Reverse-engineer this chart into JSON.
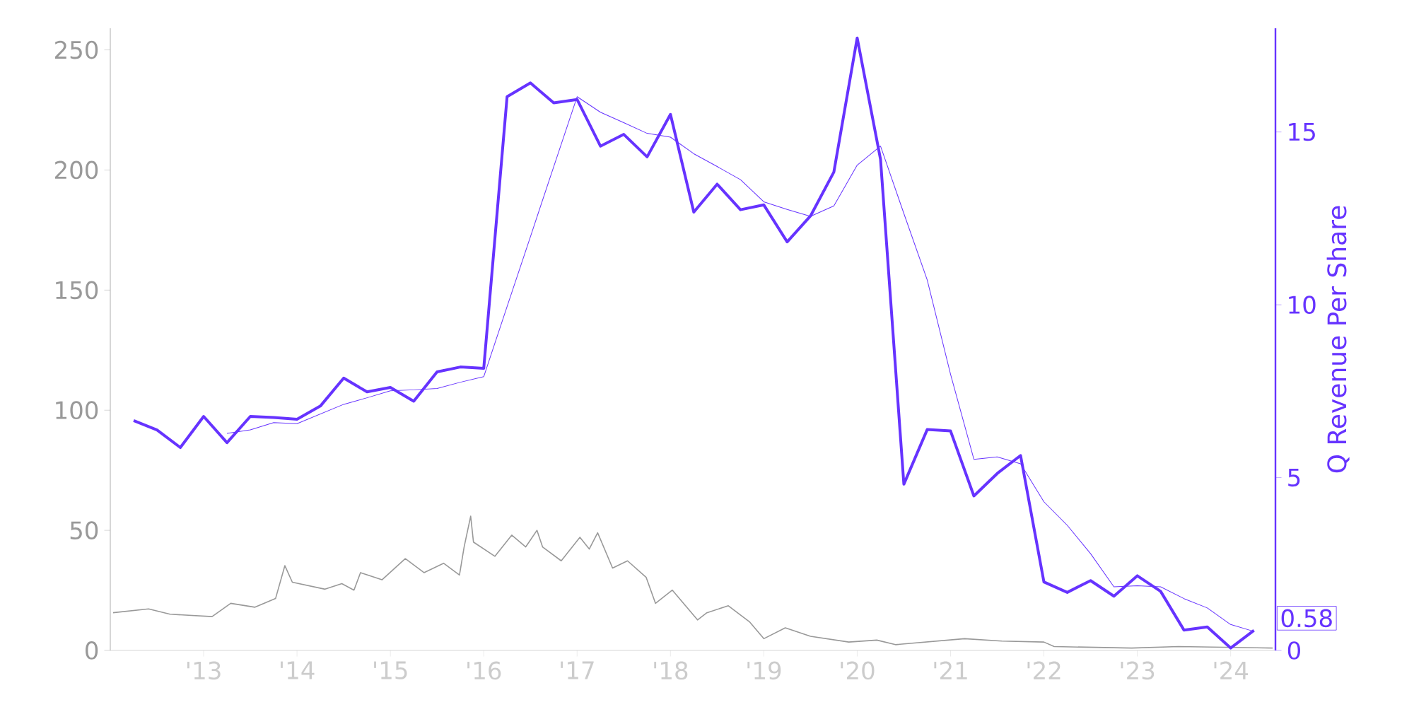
{
  "chart_data": {
    "type": "line",
    "y2label": "Q Revenue Per Share",
    "xlim": [
      2012,
      2024.48
    ],
    "xticks": [
      {
        "value": 2013,
        "label": "'13"
      },
      {
        "value": 2014,
        "label": "'14"
      },
      {
        "value": 2015,
        "label": "'15"
      },
      {
        "value": 2016,
        "label": "'16"
      },
      {
        "value": 2017,
        "label": "'17"
      },
      {
        "value": 2018,
        "label": "'18"
      },
      {
        "value": 2019,
        "label": "'19"
      },
      {
        "value": 2020,
        "label": "'20"
      },
      {
        "value": 2021,
        "label": "'21"
      },
      {
        "value": 2022,
        "label": "'22"
      },
      {
        "value": 2023,
        "label": "'23"
      },
      {
        "value": 2024,
        "label": "'24"
      }
    ],
    "ylim": [
      0,
      259
    ],
    "yticks": [
      0,
      50,
      100,
      150,
      200,
      250
    ],
    "y2lim": [
      0,
      18
    ],
    "y2ticks": [
      0,
      5,
      10,
      15
    ],
    "marker": "none",
    "line_style": "solid",
    "series": [
      {
        "color": "#999999",
        "axis": "y",
        "x": [
          2012.03,
          2012.41,
          2012.64,
          2013.09,
          2013.29,
          2013.55,
          2013.77,
          2013.87,
          2013.95,
          2014.3,
          2014.48,
          2014.61,
          2014.68,
          2014.91,
          2015.16,
          2015.36,
          2015.57,
          2015.74,
          2015.79,
          2015.86,
          2015.89,
          2016.12,
          2016.3,
          2016.45,
          2016.57,
          2016.63,
          2016.83,
          2017.03,
          2017.13,
          2017.22,
          2017.38,
          2017.54,
          2017.74,
          2017.84,
          2018.02,
          2018.29,
          2018.39,
          2018.62,
          2018.85,
          2019.0,
          2019.23,
          2019.5,
          2019.91,
          2020.21,
          2020.41,
          2021.15,
          2021.55,
          2022.0,
          2022.11,
          2022.94,
          2023.44,
          2024.45
        ],
        "values": [
          15.7,
          17.3,
          15.1,
          14.1,
          19.6,
          18.0,
          21.6,
          35.3,
          28.4,
          25.5,
          27.8,
          25.1,
          32.4,
          29.4,
          38.2,
          32.4,
          36.3,
          31.4,
          43.1,
          55.9,
          45.1,
          39.2,
          48.0,
          43.1,
          50.0,
          43.1,
          37.3,
          47.1,
          42.2,
          49.0,
          34.3,
          37.3,
          30.4,
          19.6,
          25.1,
          12.7,
          15.7,
          18.6,
          11.8,
          4.9,
          9.4,
          5.9,
          3.5,
          4.3,
          2.4,
          4.9,
          3.9,
          3.5,
          1.6,
          1.0,
          1.6,
          1.0
        ]
      },
      {
        "color": "#6633ff",
        "axis": "y2",
        "x": [
          2012.25,
          2012.5,
          2012.75,
          2013.0,
          2013.25,
          2013.5,
          2013.75,
          2014.0,
          2014.25,
          2014.5,
          2014.75,
          2015.0,
          2015.25,
          2015.5,
          2015.75,
          2016.0,
          2016.25,
          2016.5,
          2016.75,
          2017.0,
          2017.25,
          2017.5,
          2017.75,
          2018.0,
          2018.25,
          2018.5,
          2018.75,
          2019.0,
          2019.25,
          2019.5,
          2019.75,
          2020.0,
          2020.25,
          2020.5,
          2020.75,
          2021.0,
          2021.25,
          2021.5,
          2021.75,
          2022.0,
          2022.25,
          2022.5,
          2022.75,
          2023.0,
          2023.25,
          2023.5,
          2023.75,
          2024.0,
          2024.25
        ],
        "values": [
          6.65,
          6.38,
          5.87,
          6.77,
          6.01,
          6.77,
          6.74,
          6.69,
          7.07,
          7.88,
          7.48,
          7.61,
          7.21,
          8.06,
          8.2,
          8.16,
          16.02,
          16.42,
          15.84,
          15.94,
          14.59,
          14.93,
          14.28,
          15.51,
          12.68,
          13.49,
          12.75,
          12.89,
          11.82,
          12.57,
          13.84,
          17.72,
          14.21,
          4.81,
          6.39,
          6.35,
          4.47,
          5.12,
          5.64,
          1.98,
          1.68,
          2.02,
          1.57,
          2.16,
          1.71,
          0.59,
          0.68,
          0.07,
          0.58
        ],
        "value_labels": [
          null,
          null,
          null,
          null,
          null,
          null,
          null,
          null,
          null,
          null,
          null,
          null,
          null,
          null,
          null,
          null,
          null,
          null,
          null,
          null,
          null,
          null,
          null,
          null,
          null,
          null,
          null,
          null,
          null,
          null,
          null,
          null,
          null,
          null,
          null,
          null,
          null,
          null,
          null,
          null,
          null,
          null,
          null,
          null,
          null,
          null,
          null,
          null,
          "0.58"
        ]
      },
      {
        "color": "#6633ff",
        "axis": "y2",
        "x": [
          2013.25,
          2013.5,
          2013.75,
          2014.0,
          2014.25,
          2014.5,
          2014.75,
          2015.0,
          2015.25,
          2015.5,
          2015.75,
          2016.0,
          2016.25,
          2016.5,
          2016.75,
          2017.0,
          2017.25,
          2017.5,
          2017.75,
          2018.0,
          2018.25,
          2018.5,
          2018.75,
          2019.0,
          2019.25,
          2019.5,
          2019.75,
          2020.0,
          2020.25,
          2020.5,
          2020.75,
          2021.0,
          2021.25,
          2021.5,
          2021.75,
          2022.0,
          2022.25,
          2022.5,
          2022.75,
          2023.0,
          2023.25,
          2023.5,
          2023.75,
          2024.0,
          2024.25
        ],
        "values": [
          6.28,
          6.38,
          6.59,
          6.56,
          6.84,
          7.12,
          7.31,
          7.51,
          7.54,
          7.58,
          7.76,
          7.92,
          9.95,
          11.97,
          14.0,
          16.02,
          15.57,
          15.27,
          14.96,
          14.85,
          14.37,
          14.0,
          13.62,
          12.98,
          12.76,
          12.56,
          12.86,
          14.04,
          14.59,
          12.64,
          10.72,
          7.99,
          5.53,
          5.6,
          5.4,
          4.3,
          3.62,
          2.8,
          1.84,
          1.87,
          1.84,
          1.5,
          1.23,
          0.75,
          0.55
        ]
      }
    ]
  }
}
